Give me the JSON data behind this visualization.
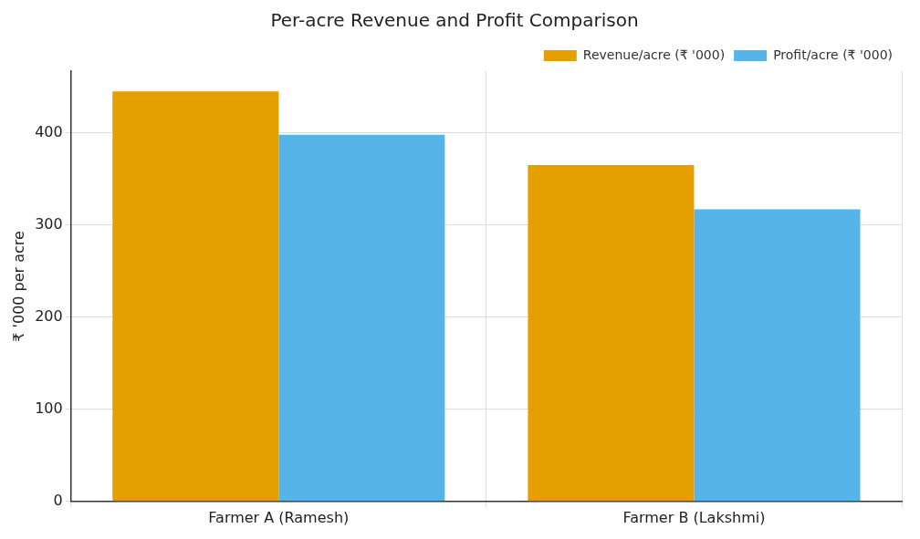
{
  "chart_data": {
    "type": "bar",
    "title": "Per-acre Revenue and Profit Comparison",
    "ylabel": "₹ '000 per acre",
    "categories": [
      "Farmer A (Ramesh)",
      "Farmer B (Lakshmi)"
    ],
    "series": [
      {
        "name": "Revenue/acre (₹ '000)",
        "color": "#e69f00",
        "values": [
          445,
          365
        ]
      },
      {
        "name": "Profit/acre (₹ '000)",
        "color": "#56b4e9",
        "values": [
          398,
          317
        ]
      }
    ],
    "ylim": [
      0,
      467
    ],
    "yticks": [
      0,
      100,
      200,
      300,
      400
    ],
    "grid": true,
    "legend": "top right"
  }
}
